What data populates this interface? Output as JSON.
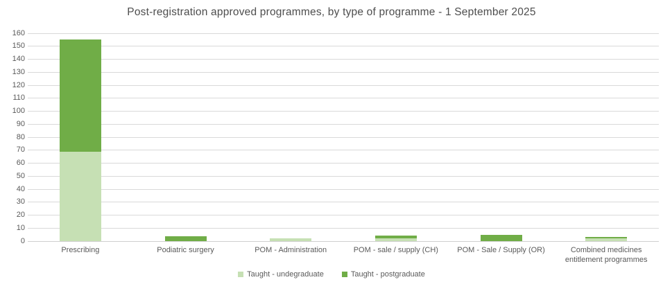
{
  "title": "Post-registration approved programmes, by type of programme - 1 September 2025",
  "colors": {
    "undergraduate": "#c6e0b4",
    "postgraduate": "#70ad47",
    "gridline": "#d9d9d9",
    "axis_text": "#595959",
    "title_text": "#4d4d4d"
  },
  "chart_data": {
    "type": "bar",
    "stacked": true,
    "title": "Post-registration approved programmes, by type of programme - 1 September 2025",
    "categories": [
      "Prescribing",
      "Podiatric surgery",
      "POM - Administration",
      "POM - sale / supply (CH)",
      "POM - Sale / Supply (OR)",
      "Combined medicines entitlement programmes"
    ],
    "series": [
      {
        "name": "Taught - undegraduate",
        "color": "#c6e0b4",
        "values": [
          69,
          0,
          2,
          2,
          0,
          2
        ]
      },
      {
        "name": "Taught - postgraduate",
        "color": "#70ad47",
        "values": [
          86,
          4,
          0,
          2,
          5,
          1
        ]
      }
    ],
    "xlabel": "",
    "ylabel": "",
    "ylim": [
      0,
      160
    ],
    "ytick_step": 10,
    "grid": true,
    "legend_position": "bottom"
  }
}
